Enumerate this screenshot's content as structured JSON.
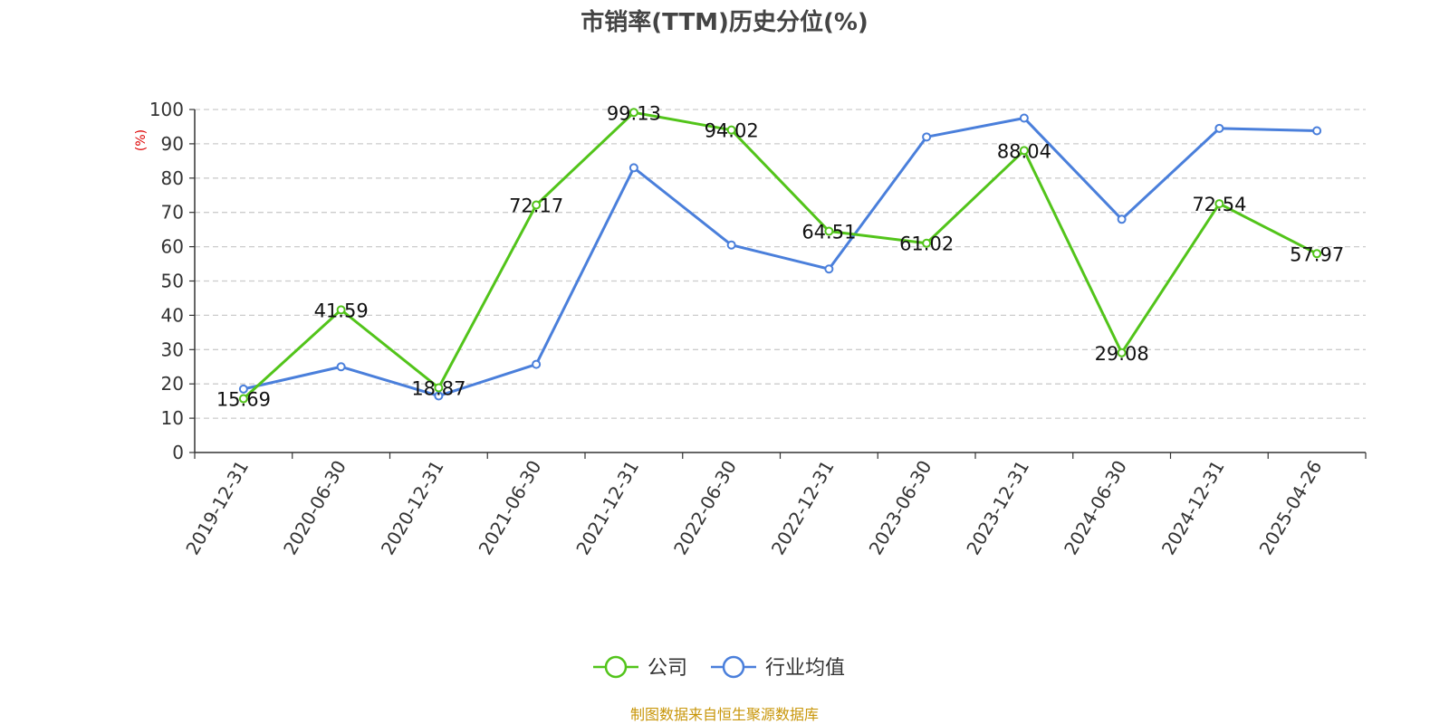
{
  "chart_data": {
    "type": "line",
    "title": "市销率(TTM)历史分位(%)",
    "ylabel": "(%)",
    "ylim": [
      0,
      100
    ],
    "yticks": [
      0,
      10,
      20,
      30,
      40,
      50,
      60,
      70,
      80,
      90,
      100
    ],
    "grid": true,
    "legend_position": "bottom",
    "categories": [
      "2019-12-31",
      "2020-06-30",
      "2020-12-31",
      "2021-06-30",
      "2021-12-31",
      "2022-06-30",
      "2022-12-31",
      "2023-06-30",
      "2023-12-31",
      "2024-06-30",
      "2024-12-31",
      "2025-04-26"
    ],
    "series": [
      {
        "name": "公司",
        "color": "#52c41a",
        "values": [
          15.69,
          41.59,
          18.87,
          72.17,
          99.13,
          94.02,
          64.51,
          61.02,
          88.04,
          29.08,
          72.54,
          57.97
        ],
        "show_labels": true
      },
      {
        "name": "行业均值",
        "color": "#4a7fdb",
        "values": [
          18.5,
          25.0,
          16.5,
          25.7,
          83.0,
          60.5,
          53.5,
          92.0,
          97.5,
          68.0,
          94.5,
          93.8
        ],
        "show_labels": false
      }
    ],
    "source": "制图数据来自恒生聚源数据库",
    "source_color": "#c8960a",
    "ylabel_color": "#dd0000"
  }
}
